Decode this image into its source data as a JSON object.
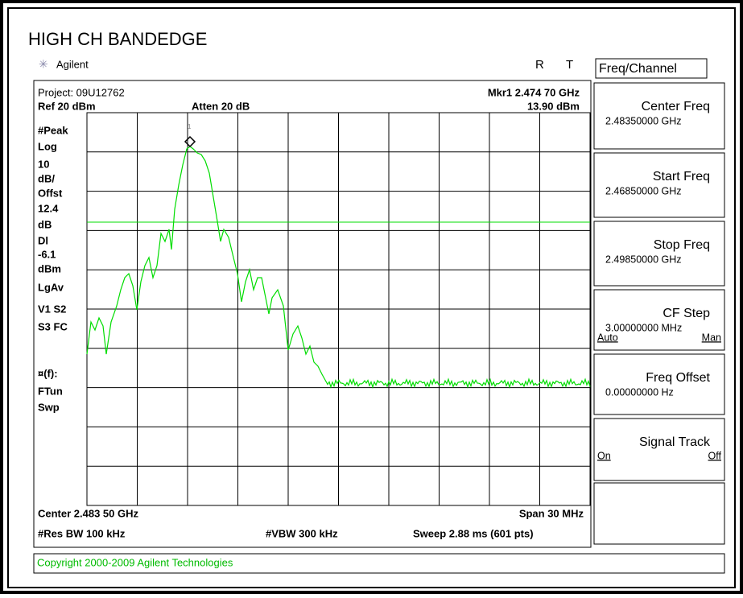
{
  "header": {
    "title": "HIGH CH BANDEDGE",
    "brand": "Agilent",
    "indicators": [
      "R",
      "T"
    ]
  },
  "display": {
    "project": "Project: 09U12762",
    "marker": "Mkr1 2.474 70 GHz",
    "ref": "Ref 20 dBm",
    "atten": "Atten 20 dB",
    "marker_level": "13.90 dBm",
    "left_labels": [
      "#Peak",
      "Log",
      "10",
      "dB/",
      "Offst",
      "12.4",
      "dB",
      "Dl",
      "-6.1",
      "dBm",
      "LgAv",
      "V1  S2",
      "S3  FC",
      "¤(f):",
      "FTun",
      "Swp"
    ],
    "marker_id": "1",
    "center": "Center 2.483 50 GHz",
    "span": "Span 30 MHz",
    "rbw": "#Res BW 100 kHz",
    "vbw": "#VBW 300 kHz",
    "sweep": "Sweep 2.88 ms (601 pts)"
  },
  "softkeys": {
    "menu": "Freq/Channel",
    "keys": [
      {
        "label": "Center Freq",
        "value": "2.48350000 GHz"
      },
      {
        "label": "Start Freq",
        "value": "2.46850000 GHz"
      },
      {
        "label": "Stop Freq",
        "value": "2.49850000 GHz"
      },
      {
        "label": "CF Step",
        "value": "3.00000000 MHz",
        "left": "Auto",
        "right": "Man"
      },
      {
        "label": "Freq Offset",
        "value": "0.00000000  Hz"
      },
      {
        "label": "Signal Track",
        "left": "On",
        "right": "Off"
      }
    ]
  },
  "footer": {
    "copyright": "Copyright 2000-2009 Agilent Technologies"
  }
}
